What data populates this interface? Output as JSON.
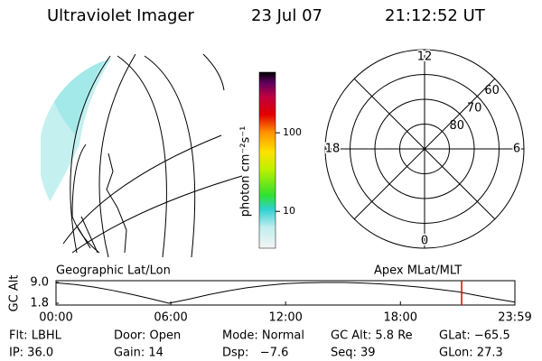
{
  "header": {
    "title": "Ultraviolet Imager",
    "date": "23 Jul 07",
    "time": "21:12:52 UT"
  },
  "image_panel": {
    "label": "Geographic Lat/Lon"
  },
  "colorbar": {
    "label": "photon cm⁻²s⁻¹",
    "log": true,
    "clim": [
      3.4,
      590
    ],
    "ticks": [
      10,
      100
    ]
  },
  "polar_panel": {
    "label": "Apex MLat/MLT",
    "rlim": [
      90,
      50
    ],
    "rticks": [
      80,
      70,
      60
    ],
    "mlt_ticks": [
      0,
      6,
      12,
      18
    ]
  },
  "chart_data": {
    "type": "line",
    "ylabel": "GC Alt",
    "color": "#000000",
    "x": [
      0,
      1,
      2,
      3,
      4,
      5,
      5.9,
      7,
      8,
      9,
      10,
      11,
      12,
      13,
      14,
      15,
      16,
      17,
      18,
      19,
      20,
      21,
      22,
      23,
      23.983
    ],
    "values": [
      8.9,
      8.3,
      7.4,
      6.2,
      4.8,
      3.3,
      1.8,
      3.3,
      4.8,
      6.1,
      7.2,
      8.0,
      8.6,
      8.9,
      9.0,
      9.0,
      8.8,
      8.5,
      8.0,
      7.4,
      6.6,
      5.8,
      4.5,
      3.3,
      2.2
    ],
    "xlim": [
      0,
      23.983
    ],
    "ylim": [
      1.8,
      9.0
    ],
    "xticks": [
      {
        "value": 0,
        "label": "00:00"
      },
      {
        "value": 6,
        "label": "06:00"
      },
      {
        "value": 12,
        "label": "12:00"
      },
      {
        "value": 18,
        "label": "18:00"
      },
      {
        "value": 23.983,
        "label": "23:59"
      }
    ],
    "yticks": [
      {
        "value": 9,
        "label": "9.0"
      },
      1.8
    ],
    "marker": {
      "x": 21.2,
      "color": "#e00000"
    }
  },
  "footer": {
    "rows": [
      [
        "Flt: LBHL",
        "Door: Open",
        "Mode: Normal",
        "GC Alt: 5.8 Re",
        "GLat: −65.5"
      ],
      [
        "IP: 36.0",
        "Gain: 14",
        "Dsp:   −7.6",
        "Seq: 39",
        "GLon: 27.3"
      ]
    ]
  }
}
